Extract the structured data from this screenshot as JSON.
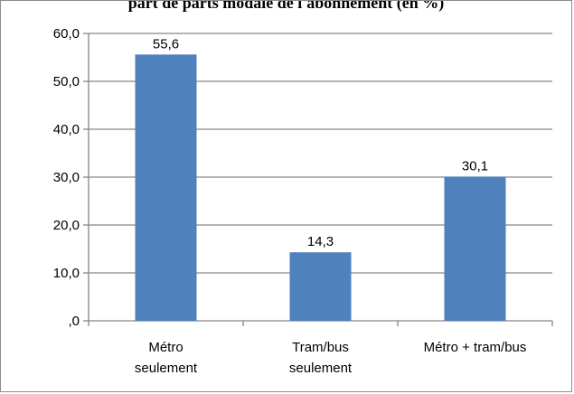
{
  "chart_data": {
    "type": "bar",
    "title": "part de parts modale de l'abonnement (en %)",
    "categories": [
      [
        "Métro",
        "seulement"
      ],
      [
        "Tram/bus",
        "seulement"
      ],
      [
        "Métro + tram/bus"
      ]
    ],
    "values": [
      55.6,
      14.3,
      30.1
    ],
    "value_labels": [
      "55,6",
      "14,3",
      "30,1"
    ],
    "yticks": [
      0,
      10,
      20,
      30,
      40,
      50,
      60
    ],
    "ytick_labels": [
      ",0",
      "10,0",
      "20,0",
      "30,0",
      "40,0",
      "50,0",
      "60,0"
    ],
    "ylim": [
      0,
      60
    ],
    "grid": true,
    "legend": "none",
    "bar_color": "#4f81bd",
    "grid_color": "#868686",
    "xlabel": "",
    "ylabel": ""
  }
}
